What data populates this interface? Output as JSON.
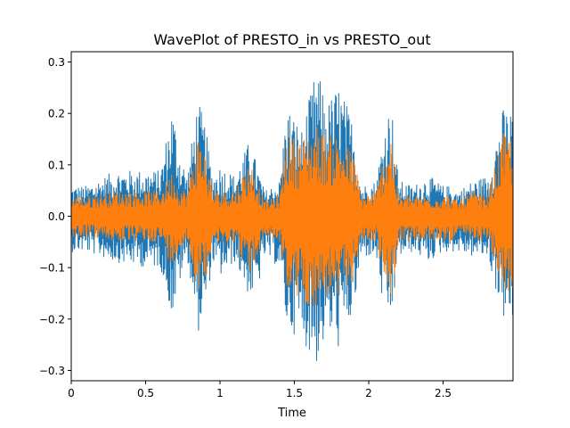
{
  "chart_data": {
    "type": "line",
    "title": "WavePlot of PRESTO_in vs PRESTO_out",
    "xlabel": "Time",
    "ylabel": "",
    "xlim": [
      0,
      2.97
    ],
    "ylim": [
      -0.32,
      0.32
    ],
    "xticks": [
      {
        "value": 0,
        "label": "0"
      },
      {
        "value": 0.5,
        "label": "0.5"
      },
      {
        "value": 1,
        "label": "1"
      },
      {
        "value": 1.5,
        "label": "1.5"
      },
      {
        "value": 2,
        "label": "2"
      },
      {
        "value": 2.5,
        "label": "2.5"
      }
    ],
    "yticks": [
      {
        "value": 0.3,
        "label": "0.3"
      },
      {
        "value": 0.2,
        "label": "0.2"
      },
      {
        "value": 0.1,
        "label": "0.1"
      },
      {
        "value": 0.0,
        "label": "0.0"
      },
      {
        "value": -0.1,
        "label": "−0.1"
      },
      {
        "value": -0.2,
        "label": "−0.2"
      },
      {
        "value": -0.3,
        "label": "−0.3"
      }
    ],
    "grid": false,
    "legend": "none",
    "series": [
      {
        "color": "#1f77b4",
        "envelope": {
          "x": [
            0,
            0.1,
            0.3,
            0.5,
            0.6,
            0.68,
            0.72,
            0.78,
            0.85,
            0.9,
            0.95,
            1.0,
            1.1,
            1.2,
            1.25,
            1.3,
            1.4,
            1.45,
            1.55,
            1.65,
            1.72,
            1.8,
            1.9,
            1.95,
            2.05,
            2.1,
            2.15,
            2.2,
            2.3,
            2.4,
            2.5,
            2.55,
            2.6,
            2.7,
            2.8,
            2.9,
            2.97
          ],
          "upper": [
            0.06,
            0.06,
            0.09,
            0.09,
            0.09,
            0.22,
            0.14,
            0.08,
            0.23,
            0.18,
            0.08,
            0.1,
            0.08,
            0.15,
            0.1,
            0.05,
            0.07,
            0.22,
            0.17,
            0.29,
            0.22,
            0.26,
            0.18,
            0.06,
            0.07,
            0.17,
            0.23,
            0.07,
            0.06,
            0.08,
            0.06,
            0.06,
            0.05,
            0.07,
            0.08,
            0.21,
            0.21
          ],
          "lower": [
            -0.07,
            -0.07,
            -0.09,
            -0.1,
            -0.1,
            -0.2,
            -0.14,
            -0.08,
            -0.23,
            -0.19,
            -0.09,
            -0.12,
            -0.09,
            -0.16,
            -0.15,
            -0.08,
            -0.1,
            -0.22,
            -0.24,
            -0.29,
            -0.23,
            -0.26,
            -0.19,
            -0.08,
            -0.08,
            -0.19,
            -0.21,
            -0.08,
            -0.07,
            -0.09,
            -0.07,
            -0.07,
            -0.07,
            -0.08,
            -0.08,
            -0.2,
            -0.21
          ]
        }
      },
      {
        "color": "#ff7f0e",
        "envelope": {
          "x": [
            0,
            0.1,
            0.3,
            0.5,
            0.6,
            0.68,
            0.72,
            0.78,
            0.85,
            0.9,
            0.95,
            1.0,
            1.1,
            1.2,
            1.25,
            1.3,
            1.4,
            1.45,
            1.55,
            1.65,
            1.72,
            1.8,
            1.9,
            1.95,
            2.05,
            2.1,
            2.15,
            2.2,
            2.3,
            2.4,
            2.5,
            2.55,
            2.6,
            2.7,
            2.8,
            2.9,
            2.97
          ],
          "upper": [
            0.04,
            0.04,
            0.05,
            0.05,
            0.05,
            0.09,
            0.06,
            0.05,
            0.16,
            0.13,
            0.05,
            0.05,
            0.05,
            0.11,
            0.07,
            0.03,
            0.04,
            0.16,
            0.15,
            0.18,
            0.16,
            0.16,
            0.12,
            0.04,
            0.05,
            0.12,
            0.17,
            0.04,
            0.04,
            0.04,
            0.04,
            0.04,
            0.03,
            0.05,
            0.04,
            0.16,
            0.16
          ],
          "lower": [
            -0.04,
            -0.04,
            -0.05,
            -0.05,
            -0.05,
            -0.1,
            -0.07,
            -0.05,
            -0.15,
            -0.13,
            -0.05,
            -0.06,
            -0.05,
            -0.12,
            -0.08,
            -0.04,
            -0.05,
            -0.15,
            -0.17,
            -0.18,
            -0.16,
            -0.17,
            -0.12,
            -0.05,
            -0.05,
            -0.13,
            -0.17,
            -0.05,
            -0.05,
            -0.05,
            -0.05,
            -0.05,
            -0.04,
            -0.05,
            -0.05,
            -0.15,
            -0.15
          ]
        }
      }
    ]
  }
}
